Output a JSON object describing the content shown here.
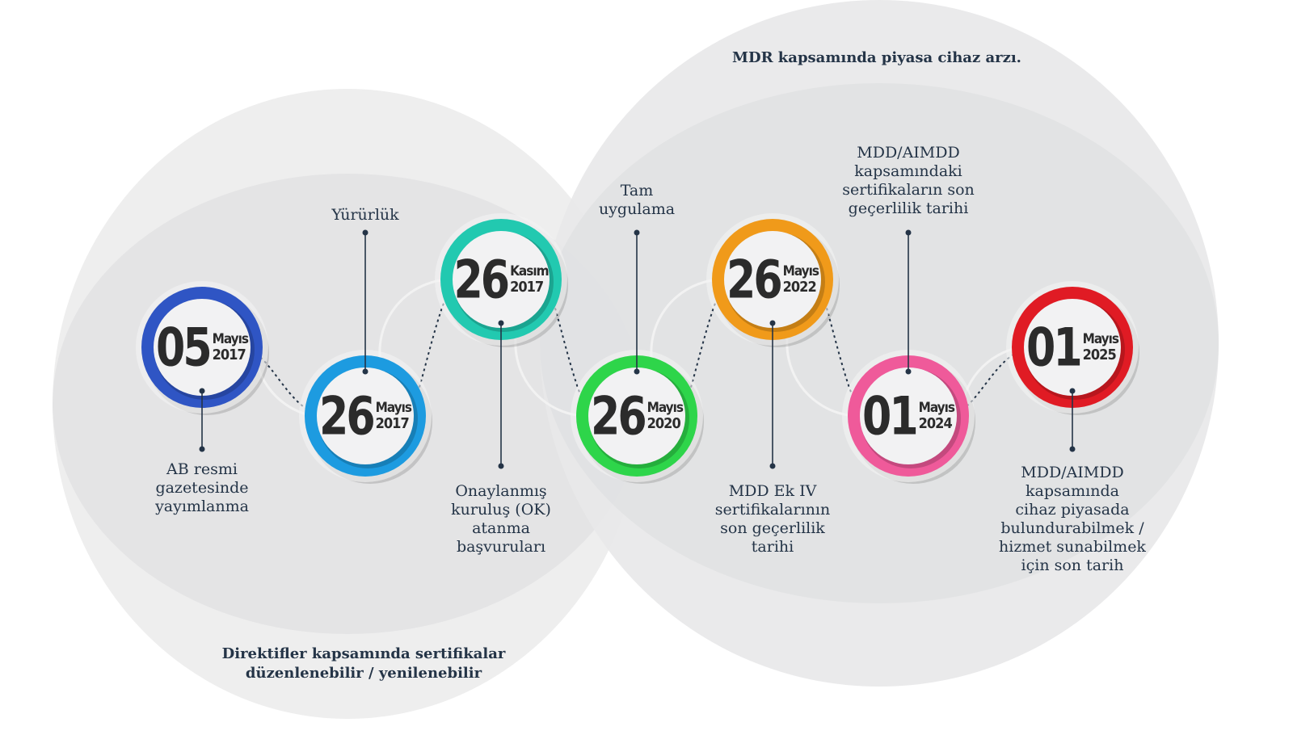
{
  "colors": {
    "blue_dark": "#2f55c4",
    "blue_light": "#1d9be0",
    "teal": "#22c9b0",
    "green": "#2ed54a",
    "orange": "#f09a1a",
    "pink": "#ef5a9a",
    "red": "#e01b24",
    "text": "#243447"
  },
  "regions": {
    "mdr_label": "MDR kapsamında piyasa cihaz arzı.",
    "directives_label": "Direktifler kapsamında sertifikalar\ndüzenlenebilir / yenilenebilir"
  },
  "milestones": [
    {
      "day": "05",
      "month": "Mayıs",
      "year": "2017",
      "color": "#2f55c4",
      "label": "AB resmi\ngazetesinde\nyayımlanma"
    },
    {
      "day": "26",
      "month": "Mayıs",
      "year": "2017",
      "color": "#1d9be0",
      "label": "Yürürlük"
    },
    {
      "day": "26",
      "month": "Kasım",
      "year": "2017",
      "color": "#22c9b0",
      "label": "Onaylanmış\nkuruluş (OK)\natanma\nbaşvuruları"
    },
    {
      "day": "26",
      "month": "Mayıs",
      "year": "2020",
      "color": "#2ed54a",
      "label": "Tam\nuygulama"
    },
    {
      "day": "26",
      "month": "Mayıs",
      "year": "2022",
      "color": "#f09a1a",
      "label": "MDD Ek IV\nsertifikalarının\nson geçerlilik\ntarihi"
    },
    {
      "day": "01",
      "month": "Mayıs",
      "year": "2024",
      "color": "#ef5a9a",
      "label": "MDD/AIMDD\nkapsamındaki\nsertifikaların son\ngeçerlilik tarihi"
    },
    {
      "day": "01",
      "month": "Mayıs",
      "year": "2025",
      "color": "#e01b24",
      "label": "MDD/AIMDD\nkapsamında\ncihaz piyasada\nbulundurabilmek /\nhizmet sunabilmek\niçin son tarih"
    }
  ]
}
